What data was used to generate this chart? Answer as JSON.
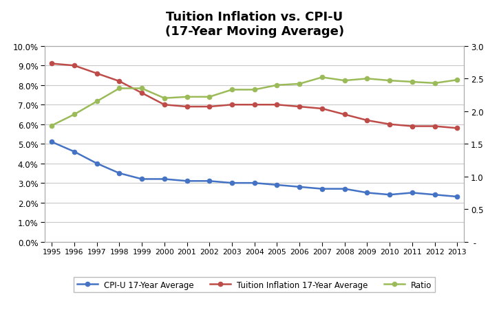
{
  "title": "Tuition Inflation vs. CPI-U\n(17-Year Moving Average)",
  "years": [
    1995,
    1996,
    1997,
    1998,
    1999,
    2000,
    2001,
    2002,
    2003,
    2004,
    2005,
    2006,
    2007,
    2008,
    2009,
    2010,
    2011,
    2012,
    2013
  ],
  "cpi_u": [
    0.051,
    0.046,
    0.04,
    0.035,
    0.032,
    0.032,
    0.031,
    0.031,
    0.03,
    0.03,
    0.029,
    0.028,
    0.027,
    0.027,
    0.025,
    0.024,
    0.025,
    0.024,
    0.023
  ],
  "tuition": [
    0.091,
    0.09,
    0.086,
    0.082,
    0.076,
    0.07,
    0.069,
    0.069,
    0.07,
    0.07,
    0.07,
    0.069,
    0.068,
    0.065,
    0.062,
    0.06,
    0.059,
    0.059,
    0.058
  ],
  "ratio": [
    1.78,
    1.95,
    2.15,
    2.35,
    2.35,
    2.2,
    2.22,
    2.22,
    2.33,
    2.33,
    2.4,
    2.42,
    2.52,
    2.47,
    2.5,
    2.47,
    2.45,
    2.43,
    2.48
  ],
  "cpi_color": "#4472C4",
  "tuition_color": "#BE4B48",
  "ratio_color": "#9BBB59",
  "legend_labels": [
    "CPI-U 17-Year Average",
    "Tuition Inflation 17-Year Average",
    "Ratio"
  ],
  "left_ylim": [
    0.0,
    0.1
  ],
  "left_yticks": [
    0.0,
    0.01,
    0.02,
    0.03,
    0.04,
    0.05,
    0.06,
    0.07,
    0.08,
    0.09,
    0.1
  ],
  "right_ylim": [
    0.0,
    3.0
  ],
  "right_yticks": [
    0.0,
    0.5,
    1.0,
    1.5,
    2.0,
    2.5,
    3.0
  ],
  "background_color": "#FFFFFF",
  "grid_color": "#C8C8C8",
  "border_color": "#AAAAAA"
}
